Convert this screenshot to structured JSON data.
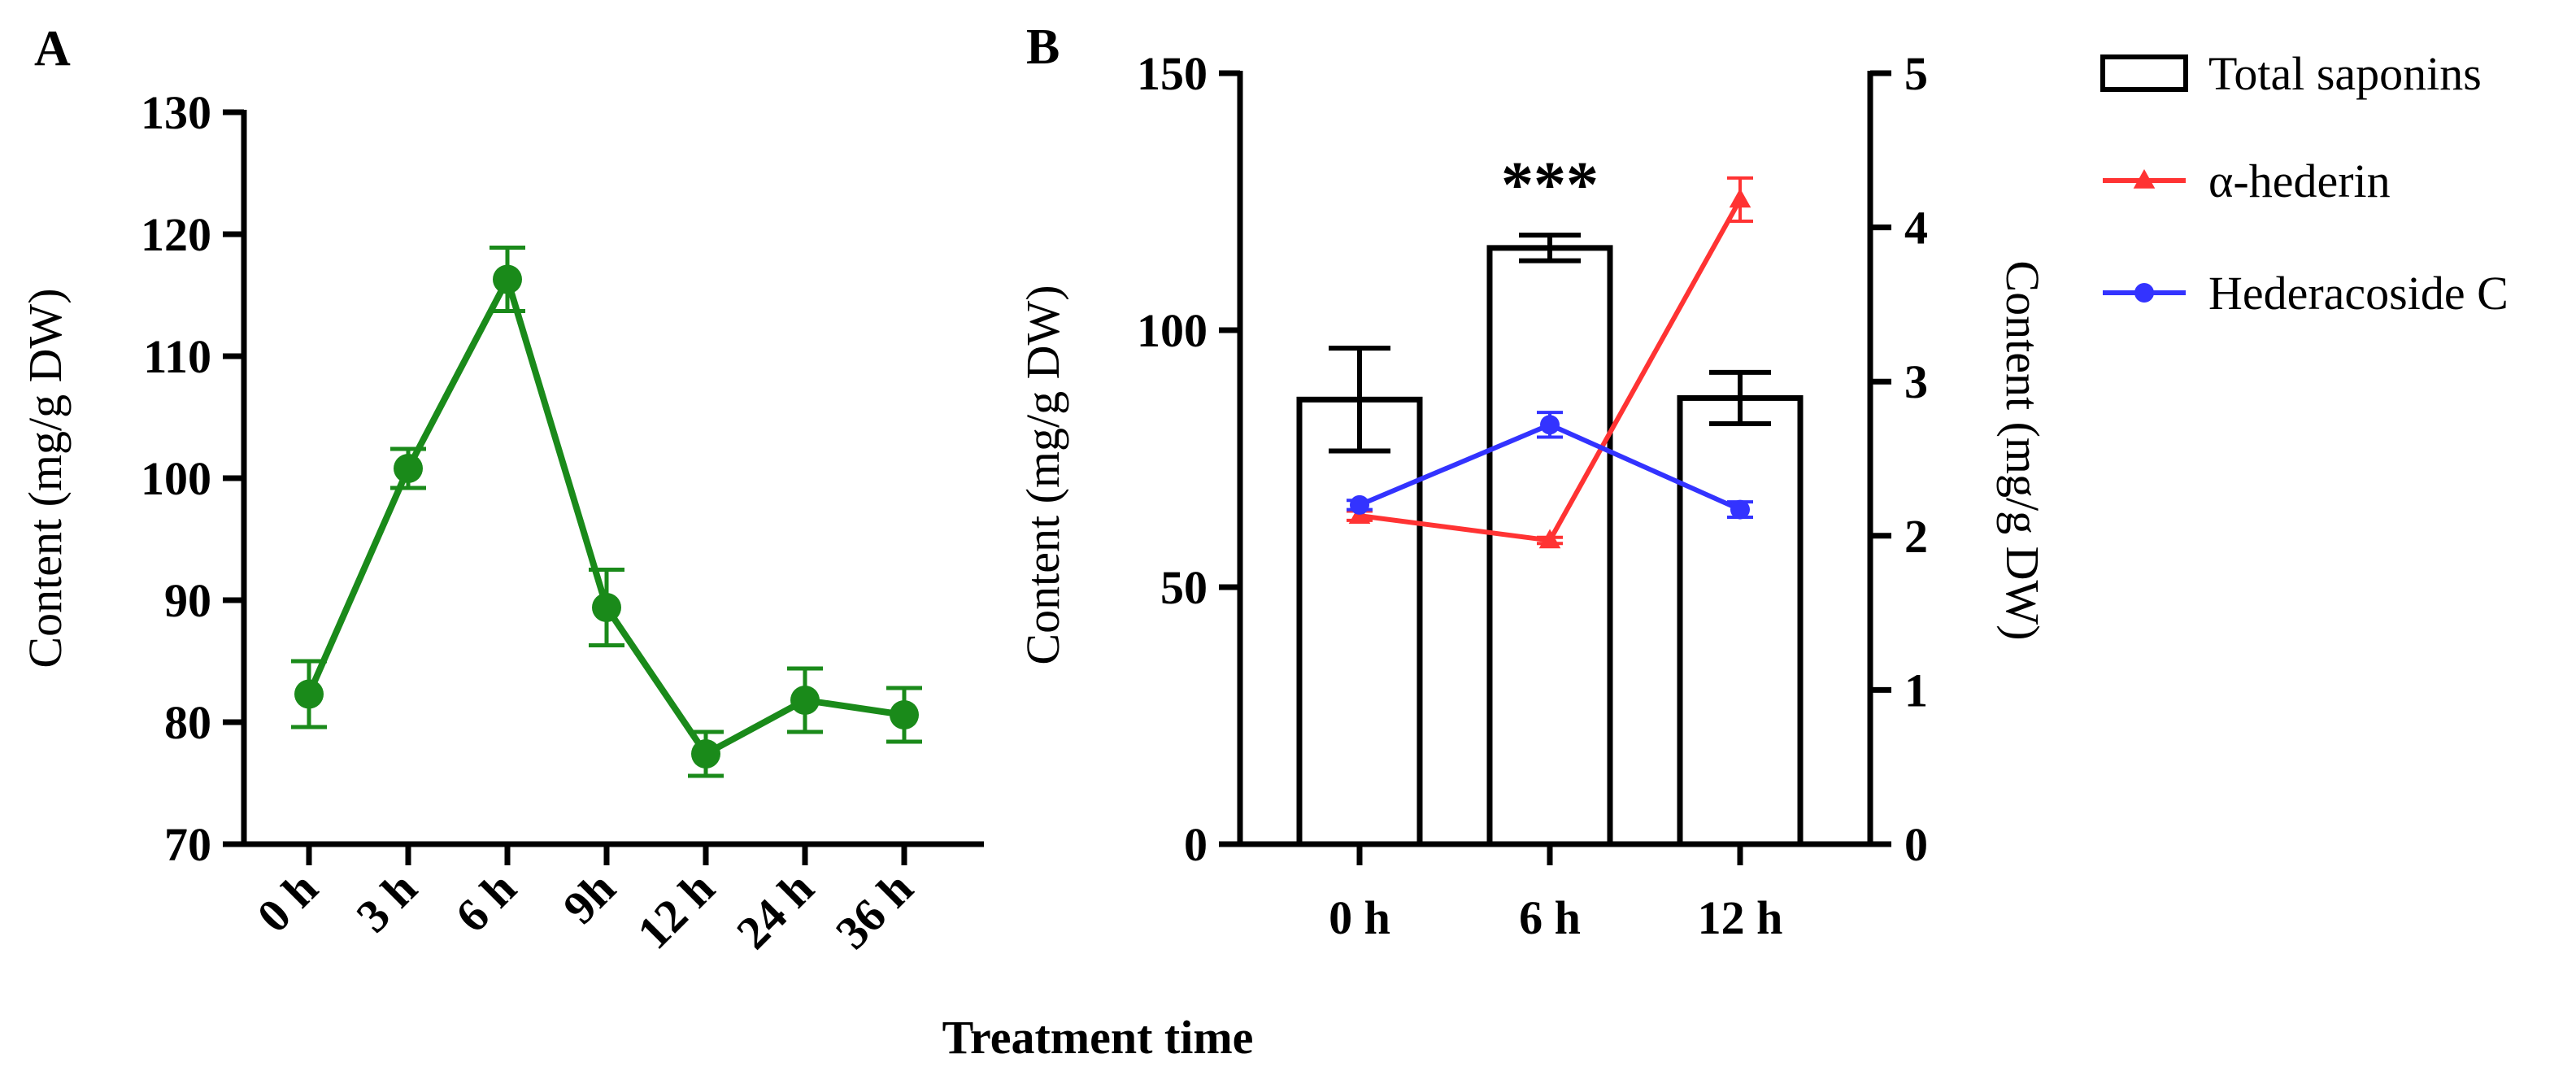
{
  "chart_data": [
    {
      "panel": "A",
      "type": "line",
      "categories": [
        "0 h",
        "3 h",
        "6 h",
        "9h",
        "12 h",
        "24 h",
        "36 h"
      ],
      "series": [
        {
          "name": "Total saponins",
          "color": "#1a8a1a",
          "values": [
            82.3,
            100.8,
            116.3,
            89.4,
            77.4,
            81.8,
            80.6
          ],
          "errors": [
            2.7,
            1.6,
            2.6,
            3.1,
            1.8,
            2.6,
            2.2
          ]
        }
      ],
      "title": "",
      "xlabel": "Treatment time",
      "ylabel": "Content (mg/g  DW)",
      "ylim": [
        70,
        130
      ],
      "yticks": [
        70,
        80,
        90,
        100,
        110,
        120,
        130
      ],
      "grid": false
    },
    {
      "panel": "B",
      "type": "bar",
      "categories": [
        "0 h",
        "6 h",
        "12 h"
      ],
      "series": [
        {
          "name": "Total saponins",
          "kind": "bar",
          "axis": "left",
          "color": "#000000",
          "values": [
            86.5,
            116.0,
            86.8
          ],
          "errors": [
            10.0,
            2.5,
            5.0
          ]
        },
        {
          "name": "α-hederin",
          "kind": "line",
          "axis": "right",
          "marker": "triangle",
          "color": "#ff3333",
          "values": [
            2.13,
            1.97,
            4.18
          ],
          "errors": [
            0.03,
            0.02,
            0.14
          ]
        },
        {
          "name": "Hederacoside C",
          "kind": "line",
          "axis": "right",
          "marker": "circle",
          "color": "#3333ff",
          "values": [
            2.2,
            2.72,
            2.17
          ],
          "errors": [
            0.03,
            0.08,
            0.05
          ]
        }
      ],
      "annotations": [
        {
          "category": "6 h",
          "text": "***"
        }
      ],
      "title": "",
      "xlabel": "Treatment time",
      "ylabel": "Content (mg/g  DW)",
      "y2label": "Content (mg/g DW)",
      "ylim": [
        0,
        150
      ],
      "yticks": [
        0,
        50,
        100,
        150
      ],
      "y2lim": [
        0,
        5
      ],
      "y2ticks": [
        0,
        1,
        2,
        3,
        4,
        5
      ],
      "legend": "top-right",
      "grid": false
    }
  ],
  "figure": {
    "panel_a_label": "A",
    "panel_b_label": "B",
    "shared_xlabel": "Treatment time"
  }
}
